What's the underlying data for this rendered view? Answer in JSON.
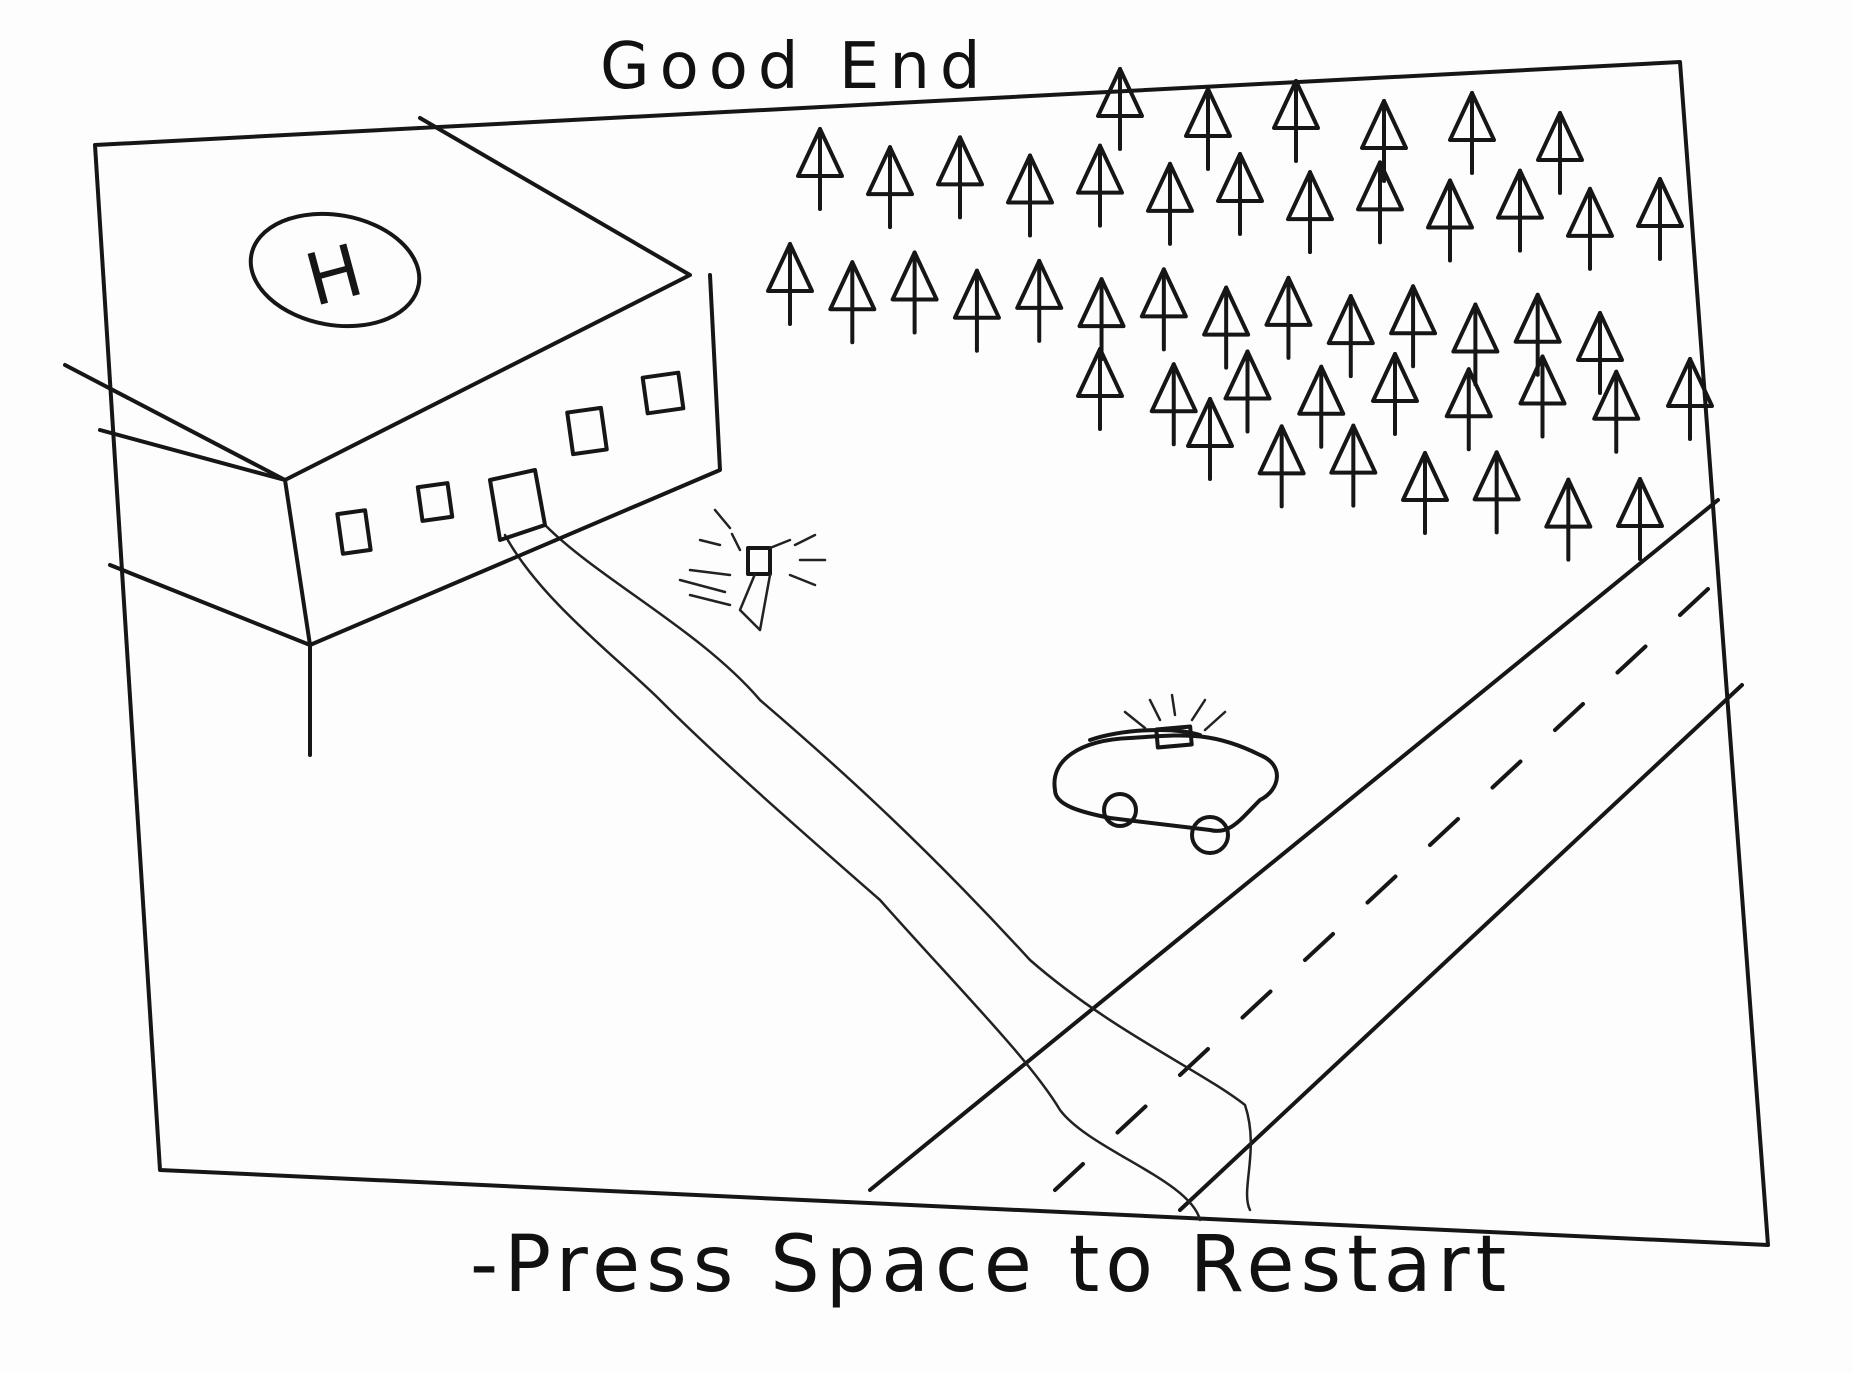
{
  "screen": {
    "title": "Good End",
    "restart_prompt": "-Press Space to Restart"
  },
  "scene": {
    "building_roof_marker": "H",
    "objects": [
      "hospital-building",
      "helipad-icon",
      "path",
      "person-icon",
      "police-car-icon",
      "road",
      "forest"
    ]
  },
  "colors": {
    "ink": "#161616",
    "paper": "#fdfdfd"
  }
}
